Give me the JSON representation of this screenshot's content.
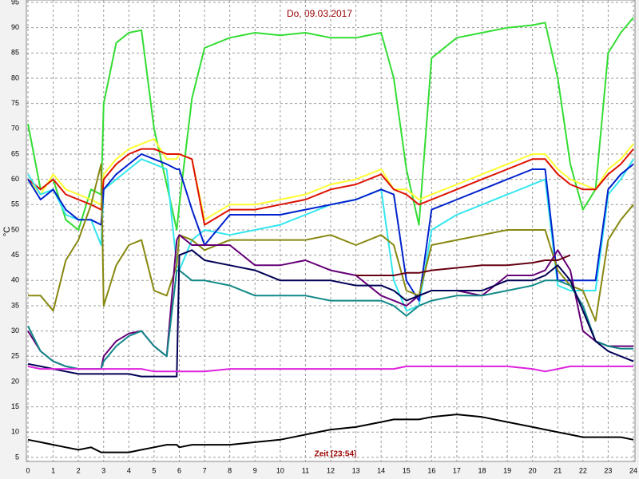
{
  "chart_data": {
    "type": "line",
    "title": "Do, 09.03.2017",
    "x_label": "Zeit [23:54]",
    "y_label": "°C",
    "x": [
      0,
      0.5,
      1,
      1.5,
      2,
      2.5,
      2.9,
      3,
      3.5,
      4,
      4.5,
      5,
      5.5,
      5.9,
      6,
      6.5,
      7,
      8,
      9,
      10,
      11,
      12,
      13,
      14,
      14.5,
      15,
      15.5,
      16,
      17,
      18,
      19,
      20,
      20.5,
      21,
      21.5,
      22,
      22.5,
      23,
      23.5,
      24
    ],
    "xlim": [
      0,
      24
    ],
    "ylim": [
      4.2,
      95
    ],
    "xticks": [
      0,
      1,
      2,
      3,
      4,
      5,
      6,
      7,
      8,
      9,
      10,
      11,
      12,
      13,
      14,
      15,
      16,
      17,
      18,
      19,
      20,
      21,
      22,
      23,
      24
    ],
    "yticks": [
      5,
      10,
      15,
      20,
      25,
      30,
      35,
      40,
      45,
      50,
      55,
      60,
      65,
      70,
      75,
      80,
      85,
      90,
      95
    ],
    "grid": true,
    "series": [
      {
        "color": "#33dd33",
        "values": [
          71,
          58,
          60,
          52,
          50,
          58,
          57,
          75,
          87,
          89,
          89.5,
          70,
          59,
          50,
          55,
          76,
          86,
          88,
          89,
          88.5,
          89,
          88,
          88,
          89,
          80,
          62,
          51,
          84,
          88,
          89,
          90,
          90.5,
          91,
          80,
          63,
          54,
          58,
          85,
          89,
          92
        ]
      },
      {
        "color": "#ffff33",
        "values": [
          60,
          57,
          61,
          58,
          57,
          56,
          55,
          61,
          64,
          66,
          67,
          68,
          64,
          64,
          65,
          64,
          52,
          55,
          55,
          56,
          57,
          59,
          60,
          62,
          58,
          58,
          56,
          57,
          59,
          61,
          63,
          65,
          65,
          62,
          60,
          59,
          58,
          62,
          64,
          67
        ]
      },
      {
        "color": "#dd1100",
        "values": [
          60,
          58,
          60,
          57,
          56,
          55,
          54,
          60,
          63,
          65,
          66,
          66,
          65,
          65,
          65,
          64,
          51,
          54,
          54,
          55,
          56,
          58,
          59,
          61,
          58,
          57,
          55,
          56,
          58,
          60,
          62,
          64,
          64,
          61,
          59,
          58,
          58,
          61,
          63,
          66
        ]
      },
      {
        "color": "#33e6ee",
        "values": [
          61,
          57,
          58,
          53,
          52,
          52,
          47,
          58,
          60,
          62,
          64,
          63,
          62,
          43,
          42,
          48,
          50,
          49,
          50,
          51,
          53,
          55,
          56,
          58,
          40,
          34,
          35,
          50,
          53,
          55,
          57,
          59,
          60,
          39,
          38,
          38,
          38,
          57,
          60,
          64
        ]
      },
      {
        "color": "#0022cc",
        "values": [
          60,
          56,
          58,
          54,
          52,
          52,
          51,
          58,
          61,
          63,
          65,
          64,
          63,
          62,
          62,
          54,
          47,
          53,
          53,
          53,
          54,
          55,
          56,
          58,
          57,
          40,
          36,
          54,
          56,
          58,
          60,
          62,
          62,
          40,
          40,
          40,
          40,
          58,
          61,
          63
        ]
      },
      {
        "color": "#888811",
        "values": [
          37,
          37,
          34,
          44,
          48,
          55,
          63,
          35,
          43,
          47,
          48,
          38,
          37,
          43,
          49,
          48,
          46,
          48,
          48,
          48,
          48,
          49,
          47,
          49,
          47,
          38,
          37,
          47,
          48,
          49,
          50,
          50,
          50,
          42,
          39,
          38,
          32,
          48,
          52,
          55
        ]
      },
      {
        "color": "#660077",
        "values": [
          30,
          26,
          24,
          23,
          22.5,
          22.5,
          22.5,
          25,
          28,
          29.5,
          30,
          27,
          25,
          48,
          49,
          47,
          47,
          47,
          43,
          43,
          44,
          42,
          41,
          37,
          36,
          35,
          37,
          38,
          38,
          37,
          41,
          41,
          42,
          46,
          42,
          30,
          28,
          27,
          27,
          27
        ]
      },
      {
        "color": "#118888",
        "values": [
          31,
          26,
          24,
          23,
          22.5,
          22.5,
          22.5,
          24,
          27,
          29,
          30,
          27,
          25,
          42,
          42,
          40,
          40,
          39,
          37,
          37,
          37,
          36,
          36,
          36,
          35,
          33,
          35,
          36,
          37,
          37,
          38,
          39,
          40,
          40,
          39,
          35,
          28,
          27,
          26.5,
          26.5
        ]
      },
      {
        "color": "#000055",
        "values": [
          23.5,
          23,
          22.5,
          22,
          21.5,
          21.5,
          21.5,
          21.5,
          21.5,
          21.5,
          21,
          21,
          21,
          21,
          45,
          46,
          44,
          43,
          42,
          40,
          40,
          40,
          39,
          39,
          38,
          36,
          37,
          38,
          38,
          38,
          40,
          40,
          41,
          43,
          40,
          34,
          28,
          26,
          25,
          24
        ]
      },
      {
        "color": "#660011",
        "values": [
          null,
          null,
          null,
          null,
          null,
          null,
          null,
          null,
          null,
          null,
          null,
          null,
          null,
          null,
          null,
          null,
          null,
          null,
          null,
          null,
          null,
          null,
          41,
          41,
          41,
          41.5,
          41.5,
          42,
          42.5,
          43,
          43,
          43.5,
          44,
          44,
          45,
          null,
          null,
          null,
          null,
          null
        ]
      },
      {
        "color": "#dd22dd",
        "values": [
          23,
          22.5,
          22.5,
          22.5,
          22.5,
          22.5,
          22.5,
          22.5,
          22.5,
          22.5,
          22.5,
          22,
          22,
          22,
          22,
          22,
          22,
          22.5,
          22.5,
          22.5,
          22.5,
          22.5,
          22.5,
          22.5,
          22.5,
          23,
          23,
          23,
          23,
          23,
          23,
          22.5,
          22,
          22.5,
          23,
          23,
          23,
          23,
          23,
          23
        ]
      },
      {
        "color": "#000000",
        "values": [
          8.5,
          8,
          7.5,
          7,
          6.5,
          7,
          6,
          6,
          6,
          6,
          6.5,
          7,
          7.5,
          7.5,
          7,
          7.5,
          7.5,
          7.5,
          8,
          8.5,
          9.5,
          10.5,
          11,
          12,
          12.5,
          12.5,
          12.5,
          13,
          13.5,
          13,
          12,
          11,
          10.5,
          10,
          9.5,
          9,
          9,
          9,
          9,
          8.5
        ]
      }
    ]
  }
}
